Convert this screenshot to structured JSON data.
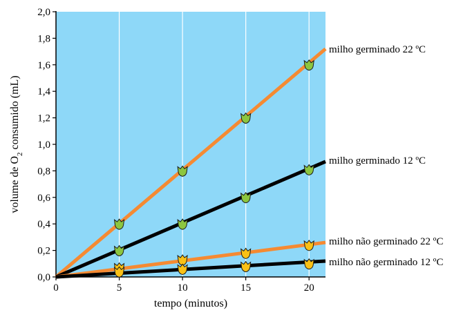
{
  "chart_data": {
    "type": "line",
    "xlabel": "tempo (minutos)",
    "ylabel": {
      "prefix": "volume de O",
      "subscript": "2",
      "suffix": " consumido (mL)"
    },
    "xlim": [
      0,
      21.3
    ],
    "ylim": [
      0,
      2.0
    ],
    "x_ticks": [
      0,
      5,
      10,
      15,
      20
    ],
    "x_tick_labels": [
      "0",
      "5",
      "10",
      "15",
      "20"
    ],
    "y_ticks": [
      0,
      0.2,
      0.4,
      0.6,
      0.8,
      1.0,
      1.2,
      1.4,
      1.6,
      1.8,
      2.0
    ],
    "y_tick_labels": [
      "0,0",
      "0,2",
      "0,4",
      "0,6",
      "0,8",
      "1,0",
      "1,2",
      "1,4",
      "1,6",
      "1,8",
      "2,0"
    ],
    "grid": true,
    "background": "#8ed8f8",
    "series": [
      {
        "name": "milho germinado 22 ºC",
        "color": "#f58a32",
        "marker_color": "#8cc63f",
        "points": [
          [
            5,
            0.4
          ],
          [
            10,
            0.8
          ],
          [
            15,
            1.2
          ],
          [
            20,
            1.6
          ]
        ],
        "line_end": [
          21.3,
          1.72
        ]
      },
      {
        "name": "milho germinado 12 ºC",
        "color": "#000000",
        "marker_color": "#8cc63f",
        "points": [
          [
            5,
            0.2
          ],
          [
            10,
            0.4
          ],
          [
            15,
            0.6
          ],
          [
            20,
            0.81
          ]
        ],
        "line_end": [
          21.3,
          0.87
        ]
      },
      {
        "name": "milho não germinado 22 ºC",
        "color": "#f58a32",
        "marker_color": "#f9c116",
        "points": [
          [
            5,
            0.07
          ],
          [
            10,
            0.13
          ],
          [
            15,
            0.18
          ],
          [
            20,
            0.24
          ]
        ],
        "line_end": [
          21.3,
          0.26
        ]
      },
      {
        "name": "milho não germinado 12 ºC",
        "color": "#000000",
        "marker_color": "#f9c116",
        "points": [
          [
            5,
            0.04
          ],
          [
            10,
            0.06
          ],
          [
            15,
            0.08
          ],
          [
            20,
            0.1
          ]
        ],
        "line_end": [
          21.3,
          0.12
        ]
      }
    ]
  }
}
